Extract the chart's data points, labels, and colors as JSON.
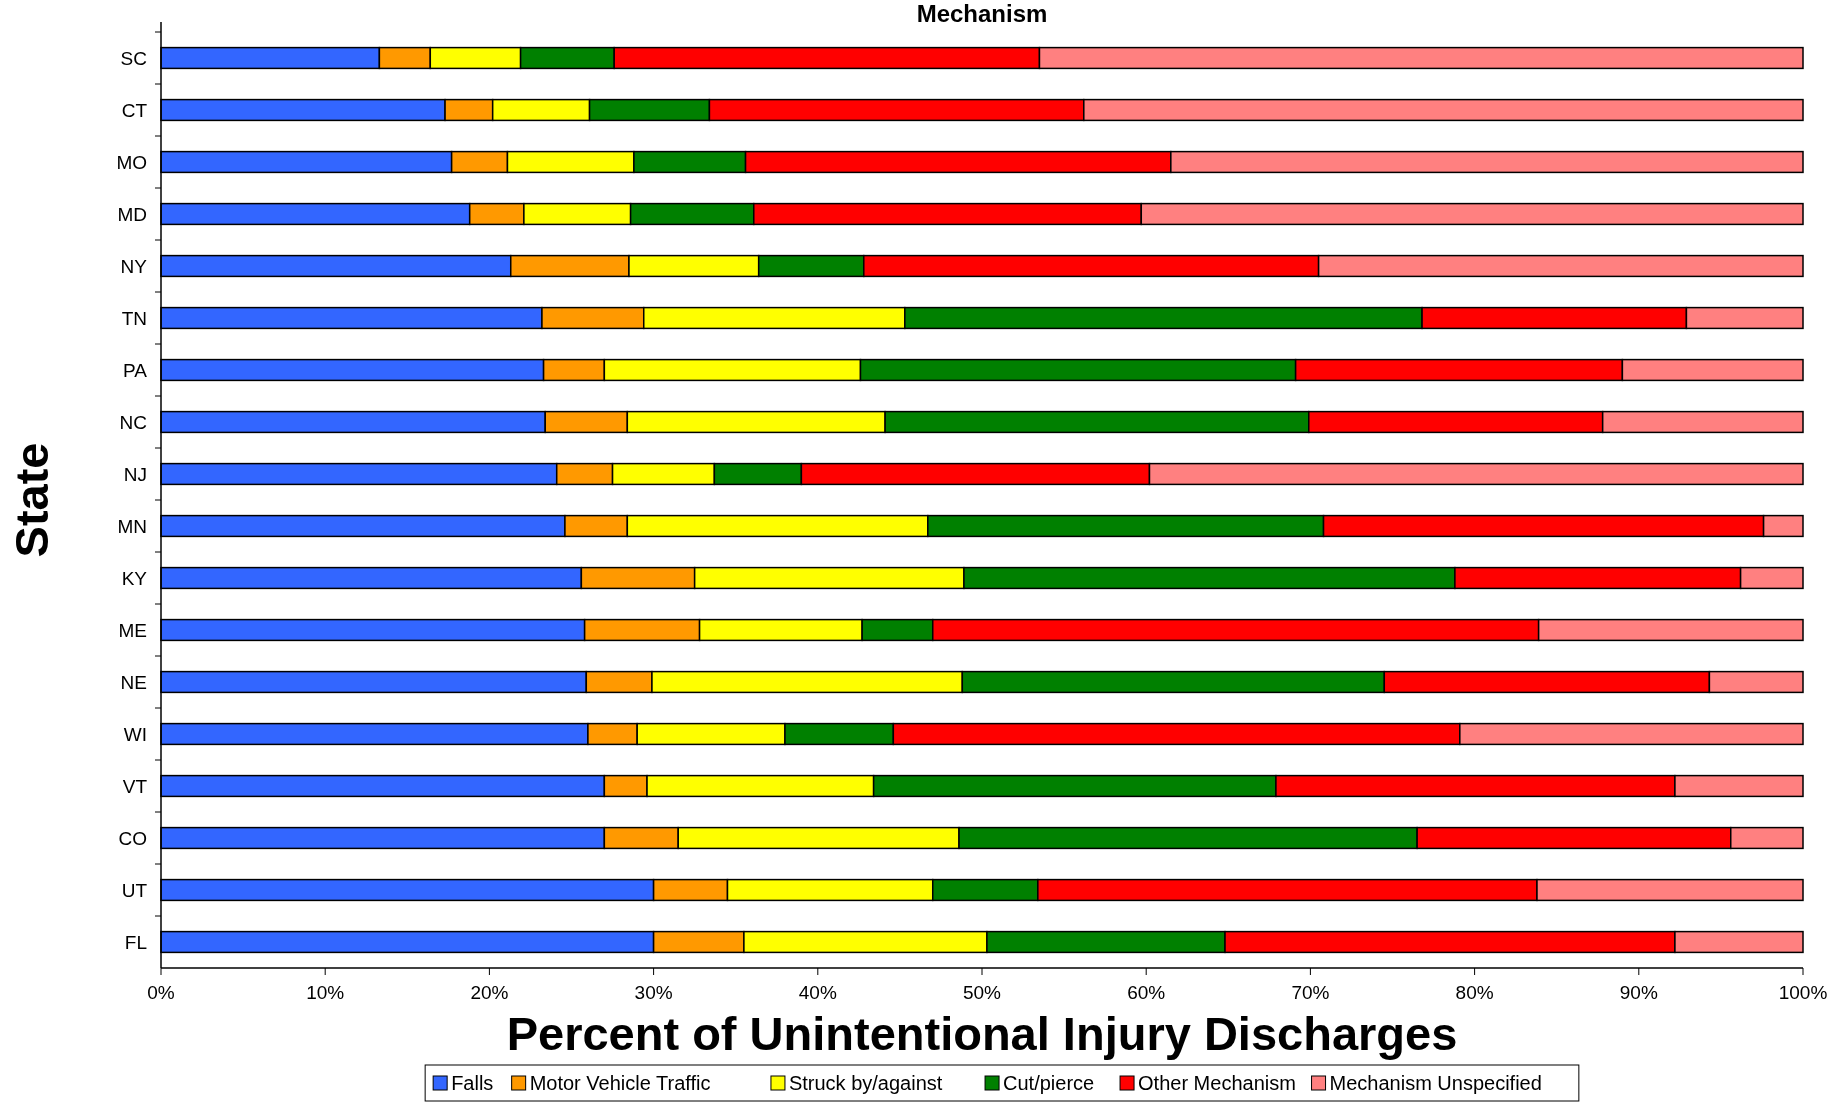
{
  "chart_data": {
    "type": "bar",
    "orientation": "horizontal",
    "stacked": true,
    "title": "Mechanism",
    "xlabel": "Percent of Unintentional Injury Discharges",
    "ylabel": "State",
    "categories": [
      "SC",
      "CT",
      "MO",
      "MD",
      "NY",
      "TN",
      "PA",
      "NC",
      "NJ",
      "MN",
      "KY",
      "ME",
      "NE",
      "WI",
      "VT",
      "CO",
      "UT",
      "FL"
    ],
    "series": [
      {
        "name": "Falls",
        "color": "#3366ff",
        "values": [
          13.3,
          17.3,
          17.7,
          18.8,
          21.3,
          23.2,
          23.3,
          23.4,
          24.1,
          24.6,
          25.6,
          25.8,
          25.9,
          26.0,
          27.0,
          27.0,
          30.0,
          30.0
        ]
      },
      {
        "name": "Motor Vehicle Traffic",
        "color": "#ff9900",
        "values": [
          3.1,
          2.9,
          3.4,
          3.3,
          7.2,
          6.2,
          3.7,
          5.0,
          3.4,
          3.8,
          6.9,
          7.0,
          4.0,
          3.0,
          2.6,
          4.5,
          4.5,
          5.5
        ]
      },
      {
        "name": "Struck by/against",
        "color": "#ffff00",
        "values": [
          5.5,
          5.9,
          7.7,
          6.5,
          7.9,
          15.9,
          15.6,
          15.7,
          6.2,
          18.3,
          16.4,
          9.9,
          18.9,
          9.0,
          13.8,
          17.1,
          12.5,
          14.8
        ]
      },
      {
        "name": "Cut/pierce",
        "color": "#008000",
        "values": [
          5.7,
          7.3,
          6.8,
          7.5,
          6.4,
          31.5,
          26.5,
          25.8,
          5.3,
          24.1,
          29.9,
          4.3,
          25.7,
          6.6,
          24.5,
          27.9,
          6.4,
          14.5
        ]
      },
      {
        "name": "Other Mechanism",
        "color": "#ff0000",
        "values": [
          25.9,
          22.8,
          25.9,
          23.6,
          27.7,
          16.1,
          19.9,
          17.9,
          21.2,
          26.8,
          17.4,
          36.9,
          19.8,
          34.5,
          24.3,
          19.1,
          30.4,
          27.4
        ]
      },
      {
        "name": "Mechanism Unspecified",
        "color": "#ff8080",
        "values": [
          46.5,
          43.8,
          38.5,
          40.3,
          29.5,
          7.1,
          11.0,
          12.2,
          39.8,
          2.4,
          3.8,
          16.1,
          5.7,
          20.9,
          7.8,
          4.4,
          16.2,
          7.8
        ]
      }
    ],
    "xlim": [
      0,
      100
    ],
    "xticks": [
      {
        "value": 0,
        "label": "0%"
      },
      {
        "value": 10,
        "label": "10%"
      },
      {
        "value": 20,
        "label": "20%"
      },
      {
        "value": 30,
        "label": "30%"
      },
      {
        "value": 40,
        "label": "40%"
      },
      {
        "value": 50,
        "label": "50%"
      },
      {
        "value": 60,
        "label": "60%"
      },
      {
        "value": 70,
        "label": "70%"
      },
      {
        "value": 80,
        "label": "80%"
      },
      {
        "value": 90,
        "label": "90%"
      },
      {
        "value": 100,
        "label": "100%"
      }
    ],
    "legend": "bottom"
  }
}
